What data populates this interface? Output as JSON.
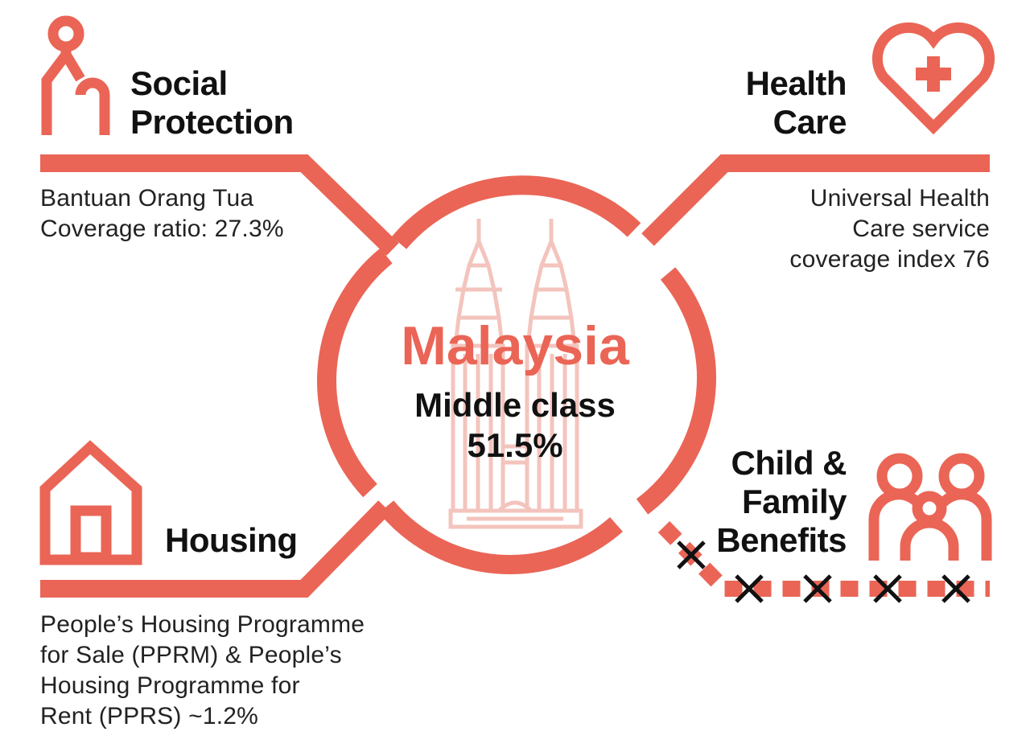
{
  "colors": {
    "accent": "#EA6556",
    "tower": "#F3C4BD",
    "text": "#111111",
    "cross": "#111111"
  },
  "center": {
    "country": "Malaysia",
    "subtitle": "Middle class",
    "value": "51.5%"
  },
  "social_protection": {
    "title_line1": "Social",
    "title_line2": "Protection",
    "desc_line1": "Bantuan Orang Tua",
    "desc_line2": "Coverage ratio: 27.3%",
    "icon": "elderly-person-cane-icon"
  },
  "health_care": {
    "title_line1": "Health",
    "title_line2": "Care",
    "desc_line1": "Universal Health",
    "desc_line2": "Care service",
    "desc_line3": "coverage index 76",
    "icon": "heart-plus-icon"
  },
  "housing": {
    "title": "Housing",
    "desc_line1": "People’s Housing Programme",
    "desc_line2": "for Sale (PPRM) & People’s",
    "desc_line3": "Housing Programme for",
    "desc_line4": "Rent (PPRS) ~1.2%",
    "icon": "house-icon"
  },
  "child_family": {
    "title_line1": "Child &",
    "title_line2": "Family",
    "title_line3": "Benefits",
    "icon": "family-icon",
    "status_marks": "cross-icon"
  }
}
